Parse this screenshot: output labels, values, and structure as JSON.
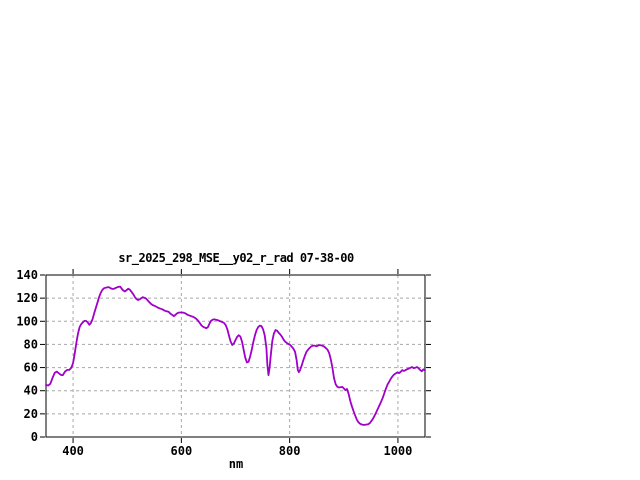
{
  "window": {
    "background": "#ffffff"
  },
  "chart_data": {
    "type": "line",
    "title": "sr_2025_298_MSE__y02_r_rad 07-38-00",
    "xlabel": "nm",
    "ylabel": "",
    "xlim": [
      350,
      1050
    ],
    "ylim": [
      0,
      140
    ],
    "x_ticks": [
      400,
      600,
      800,
      1000
    ],
    "y_ticks": [
      0,
      20,
      40,
      60,
      80,
      100,
      120,
      140
    ],
    "grid": true,
    "legend_position": "none",
    "line_color": "#A000C8",
    "grid_color": "#A8A8A8",
    "axis_color": "#000000",
    "series": [
      {
        "name": "sr_2025_298_MSE__y02_r_rad",
        "points": [
          [
            350,
            45
          ],
          [
            354,
            44.5
          ],
          [
            358,
            46
          ],
          [
            362,
            51
          ],
          [
            366,
            55.5
          ],
          [
            370,
            56.5
          ],
          [
            374,
            55
          ],
          [
            378,
            53.5
          ],
          [
            381,
            53.5
          ],
          [
            385,
            56.5
          ],
          [
            389,
            58
          ],
          [
            393,
            58
          ],
          [
            397,
            60
          ],
          [
            400,
            64
          ],
          [
            403,
            72
          ],
          [
            406,
            81
          ],
          [
            409,
            89
          ],
          [
            412,
            95
          ],
          [
            415,
            97.5
          ],
          [
            418,
            99
          ],
          [
            421,
            100.3
          ],
          [
            424,
            100.3
          ],
          [
            427,
            99
          ],
          [
            430,
            97
          ],
          [
            433,
            98.5
          ],
          [
            436,
            102
          ],
          [
            439,
            107
          ],
          [
            442,
            111.5
          ],
          [
            445,
            116
          ],
          [
            448,
            121
          ],
          [
            451,
            124.5
          ],
          [
            454,
            127
          ],
          [
            457,
            128.5
          ],
          [
            460,
            129
          ],
          [
            463,
            129.3
          ],
          [
            466,
            129.5
          ],
          [
            469,
            128.7
          ],
          [
            472,
            128
          ],
          [
            475,
            128
          ],
          [
            478,
            128.7
          ],
          [
            481,
            129.3
          ],
          [
            484,
            129.8
          ],
          [
            487,
            130
          ],
          [
            490,
            128
          ],
          [
            493,
            126.5
          ],
          [
            496,
            125.8
          ],
          [
            499,
            127
          ],
          [
            502,
            128.2
          ],
          [
            505,
            127.2
          ],
          [
            508,
            125.5
          ],
          [
            511,
            123.5
          ],
          [
            514,
            121
          ],
          [
            517,
            119.3
          ],
          [
            520,
            118.4
          ],
          [
            523,
            119
          ],
          [
            526,
            120
          ],
          [
            529,
            120.8
          ],
          [
            532,
            120.3
          ],
          [
            535,
            119.5
          ],
          [
            538,
            118
          ],
          [
            541,
            116.5
          ],
          [
            544,
            115
          ],
          [
            547,
            114
          ],
          [
            550,
            113.5
          ],
          [
            553,
            112.8
          ],
          [
            556,
            112
          ],
          [
            559,
            111.3
          ],
          [
            562,
            110.8
          ],
          [
            565,
            110.4
          ],
          [
            568,
            109.5
          ],
          [
            571,
            108.8
          ],
          [
            574,
            108.5
          ],
          [
            577,
            108
          ],
          [
            580,
            106.5
          ],
          [
            583,
            105.5
          ],
          [
            586,
            104.5
          ],
          [
            589,
            105.5
          ],
          [
            592,
            106.8
          ],
          [
            595,
            107.5
          ],
          [
            598,
            107.6
          ],
          [
            601,
            107.6
          ],
          [
            604,
            107.4
          ],
          [
            607,
            107
          ],
          [
            610,
            106
          ],
          [
            613,
            105.3
          ],
          [
            616,
            104.8
          ],
          [
            619,
            104.3
          ],
          [
            622,
            103.8
          ],
          [
            625,
            103
          ],
          [
            628,
            102
          ],
          [
            631,
            100.5
          ],
          [
            634,
            98.5
          ],
          [
            637,
            96.5
          ],
          [
            640,
            95.3
          ],
          [
            643,
            94.6
          ],
          [
            646,
            94
          ],
          [
            649,
            95
          ],
          [
            652,
            98
          ],
          [
            655,
            100.5
          ],
          [
            658,
            101.5
          ],
          [
            661,
            101.7
          ],
          [
            664,
            101.3
          ],
          [
            667,
            101
          ],
          [
            670,
            100.3
          ],
          [
            673,
            99.8
          ],
          [
            676,
            99.3
          ],
          [
            679,
            98.5
          ],
          [
            682,
            96.5
          ],
          [
            685,
            93
          ],
          [
            688,
            87.5
          ],
          [
            691,
            82.5
          ],
          [
            694,
            79.5
          ],
          [
            697,
            80.8
          ],
          [
            700,
            83.8
          ],
          [
            703,
            86.5
          ],
          [
            706,
            88
          ],
          [
            709,
            86.8
          ],
          [
            712,
            82.5
          ],
          [
            715,
            75.5
          ],
          [
            718,
            68.8
          ],
          [
            721,
            64.5
          ],
          [
            724,
            65
          ],
          [
            727,
            69.5
          ],
          [
            730,
            75.2
          ],
          [
            733,
            82.4
          ],
          [
            736,
            88
          ],
          [
            739,
            92.5
          ],
          [
            742,
            95
          ],
          [
            745,
            96.3
          ],
          [
            748,
            95.8
          ],
          [
            751,
            93
          ],
          [
            754,
            88
          ],
          [
            757,
            77
          ],
          [
            759,
            62
          ],
          [
            761,
            53.5
          ],
          [
            763,
            60
          ],
          [
            765,
            70
          ],
          [
            768,
            83
          ],
          [
            771,
            89.5
          ],
          [
            774,
            92.5
          ],
          [
            777,
            91.8
          ],
          [
            780,
            90
          ],
          [
            783,
            88.5
          ],
          [
            786,
            86.5
          ],
          [
            789,
            84
          ],
          [
            792,
            82.3
          ],
          [
            795,
            81.2
          ],
          [
            798,
            80.3
          ],
          [
            801,
            79.5
          ],
          [
            804,
            78
          ],
          [
            807,
            76.3
          ],
          [
            810,
            73.5
          ],
          [
            813,
            66
          ],
          [
            815,
            58
          ],
          [
            817,
            56
          ],
          [
            819,
            57.5
          ],
          [
            822,
            61.5
          ],
          [
            825,
            66
          ],
          [
            828,
            70
          ],
          [
            831,
            73.5
          ],
          [
            834,
            75.5
          ],
          [
            837,
            77
          ],
          [
            840,
            78.3
          ],
          [
            843,
            79
          ],
          [
            846,
            79
          ],
          [
            849,
            78.5
          ],
          [
            852,
            78.8
          ],
          [
            855,
            79.5
          ],
          [
            858,
            79.2
          ],
          [
            861,
            78.8
          ],
          [
            864,
            78
          ],
          [
            867,
            76.8
          ],
          [
            870,
            75.5
          ],
          [
            873,
            72.5
          ],
          [
            876,
            67
          ],
          [
            879,
            60
          ],
          [
            882,
            51
          ],
          [
            885,
            45.5
          ],
          [
            888,
            43.5
          ],
          [
            891,
            42.8
          ],
          [
            894,
            43
          ],
          [
            897,
            43.3
          ],
          [
            900,
            42
          ],
          [
            903,
            40.5
          ],
          [
            906,
            41.5
          ],
          [
            909,
            37
          ],
          [
            912,
            31
          ],
          [
            915,
            26.5
          ],
          [
            918,
            22.5
          ],
          [
            921,
            18.5
          ],
          [
            924,
            15
          ],
          [
            927,
            12.8
          ],
          [
            930,
            11.5
          ],
          [
            933,
            10.8
          ],
          [
            936,
            10.5
          ],
          [
            939,
            10.5
          ],
          [
            942,
            10.8
          ],
          [
            945,
            11
          ],
          [
            948,
            12
          ],
          [
            951,
            13.8
          ],
          [
            954,
            15.8
          ],
          [
            957,
            18.5
          ],
          [
            960,
            21.5
          ],
          [
            963,
            24.5
          ],
          [
            966,
            27.5
          ],
          [
            969,
            30.5
          ],
          [
            972,
            34
          ],
          [
            975,
            38
          ],
          [
            978,
            42
          ],
          [
            981,
            45.5
          ],
          [
            984,
            48
          ],
          [
            987,
            50.5
          ],
          [
            990,
            52.5
          ],
          [
            993,
            54
          ],
          [
            996,
            55
          ],
          [
            999,
            55.8
          ],
          [
            1002,
            55.2
          ],
          [
            1005,
            56.3
          ],
          [
            1008,
            57.8
          ],
          [
            1011,
            57
          ],
          [
            1014,
            57.8
          ],
          [
            1017,
            58.5
          ],
          [
            1020,
            59.2
          ],
          [
            1023,
            59.8
          ],
          [
            1026,
            60.5
          ],
          [
            1029,
            59.5
          ],
          [
            1032,
            59.8
          ],
          [
            1035,
            60.5
          ],
          [
            1038,
            59.5
          ],
          [
            1041,
            58
          ],
          [
            1044,
            56.8
          ],
          [
            1047,
            58.5
          ],
          [
            1050,
            57.5
          ]
        ]
      }
    ]
  }
}
